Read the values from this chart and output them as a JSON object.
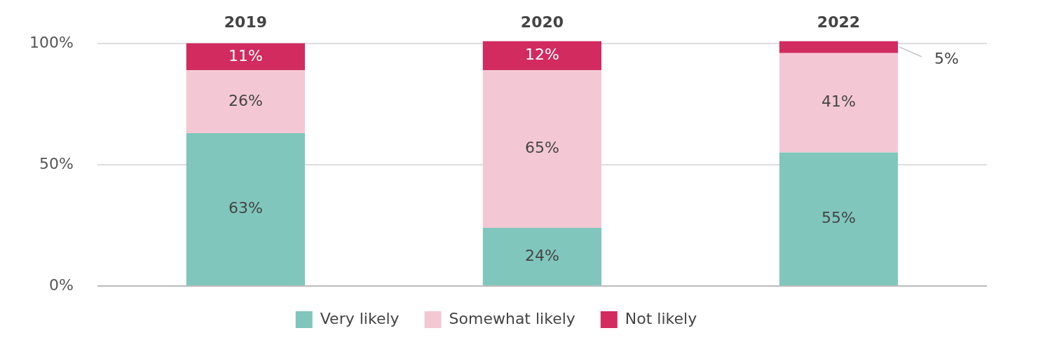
{
  "chart_data": {
    "type": "bar",
    "stacked": true,
    "categories": [
      "2019",
      "2020",
      "2022"
    ],
    "series": [
      {
        "name": "Very likely",
        "color": "#80c6bc",
        "values": [
          63,
          24,
          55
        ],
        "value_labels": [
          "63%",
          "24%",
          "55%"
        ]
      },
      {
        "name": "Somewhat likely",
        "color": "#f3c8d4",
        "values": [
          26,
          65,
          41
        ],
        "value_labels": [
          "26%",
          "65%",
          "41%"
        ]
      },
      {
        "name": "Not likely",
        "color": "#d12b60",
        "values": [
          11,
          12,
          5
        ],
        "value_labels": [
          "11%",
          "12%",
          "5%"
        ]
      }
    ],
    "ylim": [
      0,
      101
    ],
    "yticks": [
      {
        "value": 0,
        "label": "0%"
      },
      {
        "value": 50,
        "label": "50%"
      },
      {
        "value": 100,
        "label": "100%"
      }
    ],
    "grid": "y",
    "legend": "bottom"
  }
}
